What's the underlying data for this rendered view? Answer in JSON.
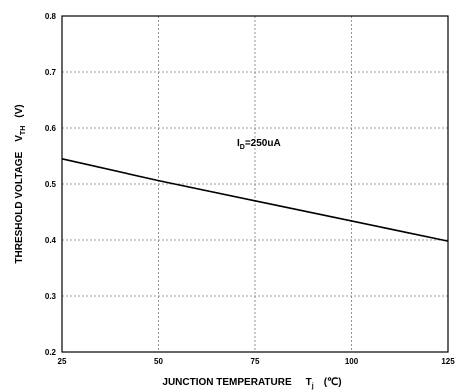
{
  "chart_data": {
    "type": "line",
    "xlabel": "JUNCTION TEMPERATURE",
    "xlabel_symbol": "T",
    "xlabel_symbol_sub": "j",
    "xlabel_unit": "(℃)",
    "ylabel": "THRESHOLD VOLTAGE",
    "ylabel_symbol": "V",
    "ylabel_symbol_sub": "TH",
    "ylabel_unit": "(V)",
    "xlim": [
      25,
      125
    ],
    "ylim": [
      0.2,
      0.8
    ],
    "x_ticks": [
      25,
      50,
      75,
      100,
      125
    ],
    "x_tick_labels": [
      "25",
      "50",
      "75",
      "100",
      "125"
    ],
    "y_ticks": [
      0.2,
      0.3,
      0.4,
      0.5,
      0.6,
      0.7,
      0.8
    ],
    "y_tick_labels": [
      "0.2",
      "0.3",
      "0.4",
      "0.5",
      "0.6",
      "0.7",
      "0.8"
    ],
    "grid": true,
    "annotation": {
      "prefix": "I",
      "sub": "D",
      "text": "=250uA",
      "x": 75,
      "y": 0.575
    },
    "series": [
      {
        "x": [
          25,
          50,
          75,
          100,
          125
        ],
        "y": [
          0.545,
          0.506,
          0.47,
          0.434,
          0.398
        ]
      }
    ]
  }
}
